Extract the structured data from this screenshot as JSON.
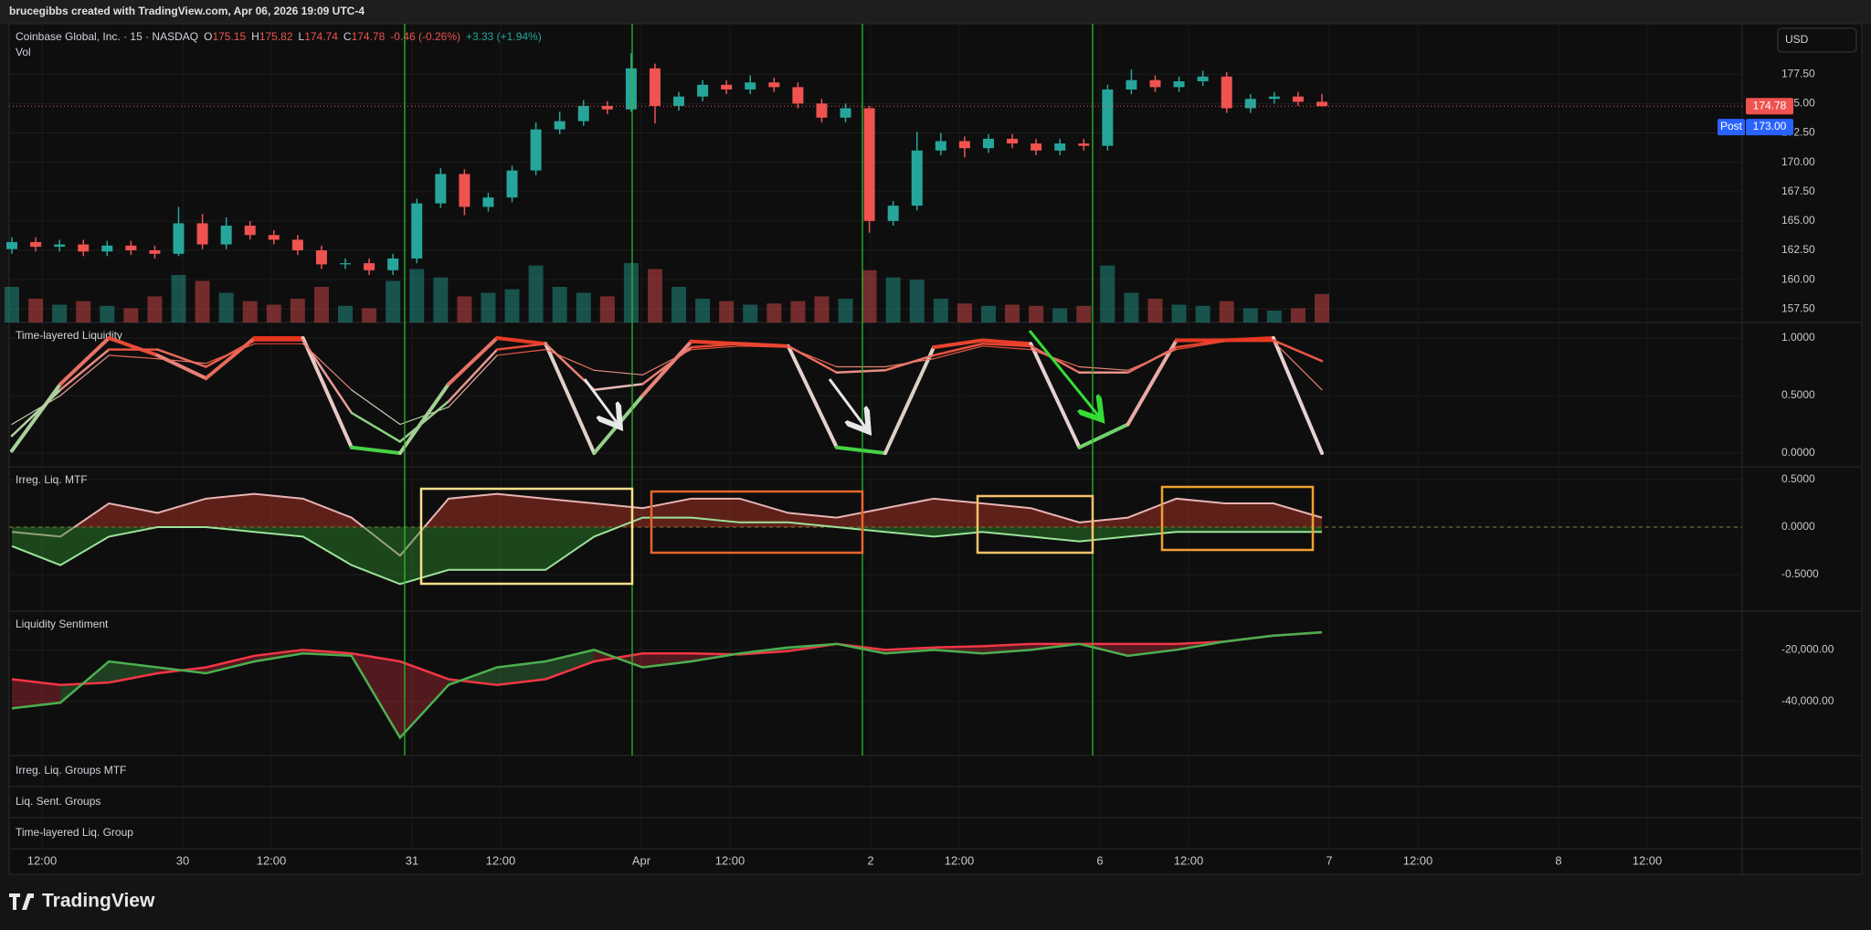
{
  "header": {
    "title": "brucegibbs created with TradingView.com, Apr 06, 2026 19:09 UTC-4"
  },
  "legend": {
    "symbol": "Coinbase Global, Inc. · 15 · NASDAQ",
    "o_label": "O",
    "open": "175.15",
    "h_label": "H",
    "high": "175.82",
    "l_label": "L",
    "low": "174.74",
    "c_label": "C",
    "close": "174.78",
    "change": "-0.46 (-0.26%)",
    "post_change": "+3.33 (+1.94%)",
    "vol": "Vol"
  },
  "currency": "USD",
  "chart_data": [
    {
      "type": "candlestick",
      "open": [
        162.6,
        163.2,
        162.8,
        163.0,
        162.4,
        162.9,
        162.5,
        162.2,
        164.8,
        163.0,
        164.6,
        163.8,
        163.4,
        162.5,
        161.3,
        161.4,
        160.8,
        161.8,
        166.5,
        169.0,
        166.2,
        167.0,
        169.3,
        172.8,
        173.5,
        174.8,
        174.5,
        178.0,
        174.8,
        175.6,
        176.6,
        176.2,
        176.8,
        176.4,
        175.0,
        173.8,
        174.6,
        165.0,
        166.3,
        171.0,
        171.8,
        171.2,
        172.0,
        171.6,
        171.0,
        171.6,
        171.4,
        176.2,
        177.0,
        176.4,
        176.9,
        177.3,
        174.6,
        175.4,
        175.6,
        175.15
      ],
      "high": [
        163.6,
        163.6,
        163.4,
        163.4,
        163.3,
        163.3,
        162.9,
        166.2,
        165.6,
        165.3,
        165.0,
        164.2,
        163.8,
        162.9,
        161.8,
        161.8,
        162.2,
        166.9,
        169.5,
        169.4,
        167.4,
        169.7,
        173.4,
        174.3,
        175.3,
        175.2,
        179.3,
        178.4,
        176.0,
        177.0,
        177.0,
        177.4,
        177.2,
        176.8,
        175.4,
        175.0,
        174.8,
        166.7,
        172.6,
        172.5,
        172.2,
        172.4,
        172.4,
        172.0,
        172.0,
        172.0,
        176.6,
        177.9,
        177.4,
        177.3,
        177.8,
        177.7,
        175.8,
        176.0,
        176.0,
        175.82
      ],
      "low": [
        162.2,
        162.4,
        162.4,
        162.0,
        162.0,
        162.1,
        161.8,
        162.0,
        162.6,
        162.6,
        163.4,
        163.0,
        162.1,
        160.9,
        160.9,
        160.4,
        160.4,
        161.4,
        166.1,
        165.5,
        165.8,
        166.6,
        168.9,
        172.4,
        173.1,
        174.1,
        174.3,
        173.3,
        174.4,
        175.2,
        175.8,
        175.8,
        176.0,
        174.6,
        173.4,
        173.4,
        164.0,
        164.6,
        165.9,
        170.6,
        170.4,
        170.8,
        171.2,
        170.6,
        170.6,
        171.0,
        171.0,
        175.8,
        176.0,
        176.0,
        176.5,
        174.2,
        174.2,
        175.0,
        174.8,
        174.74
      ],
      "close": [
        163.2,
        162.8,
        163.0,
        162.4,
        162.9,
        162.5,
        162.2,
        164.8,
        163.0,
        164.6,
        163.8,
        163.4,
        162.5,
        161.3,
        161.4,
        160.8,
        161.8,
        166.5,
        169.0,
        166.2,
        167.0,
        169.3,
        172.8,
        173.5,
        174.8,
        174.5,
        178.0,
        174.8,
        175.6,
        176.6,
        176.2,
        176.8,
        176.4,
        175.0,
        173.8,
        174.6,
        165.0,
        166.3,
        171.0,
        171.8,
        171.2,
        172.0,
        171.6,
        171.0,
        171.6,
        171.4,
        176.2,
        177.0,
        176.4,
        176.9,
        177.3,
        174.6,
        175.4,
        175.6,
        175.15,
        174.78
      ],
      "volume": [
        30,
        20,
        15,
        18,
        14,
        12,
        22,
        40,
        35,
        25,
        18,
        15,
        20,
        30,
        14,
        12,
        35,
        45,
        38,
        22,
        25,
        28,
        48,
        30,
        25,
        22,
        50,
        45,
        30,
        20,
        18,
        15,
        16,
        18,
        22,
        20,
        44,
        38,
        36,
        20,
        16,
        14,
        15,
        14,
        12,
        14,
        48,
        25,
        20,
        15,
        14,
        18,
        12,
        10,
        12,
        24
      ],
      "vol_ylim": [
        0,
        100
      ],
      "up_color": "#26a69a",
      "down_color": "#ef5350",
      "ylim": [
        156.35,
        181.8
      ],
      "yticks": [
        {
          "value": 157.5,
          "label": "157.50"
        },
        {
          "value": 160,
          "label": "160.00"
        },
        {
          "value": 162.5,
          "label": "162.50"
        },
        {
          "value": 165,
          "label": "165.00"
        },
        {
          "value": 167.5,
          "label": "167.50"
        },
        {
          "value": 170,
          "label": "170.00"
        },
        {
          "value": 172.5,
          "label": "172.50"
        },
        {
          "value": 175,
          "label": "175.00"
        },
        {
          "value": 177.5,
          "label": "177.50"
        }
      ],
      "grid": true,
      "last_price": {
        "value": 174.78,
        "label": "174.78"
      },
      "post_label": "Post",
      "post_price": {
        "value": 173,
        "label": "173.00"
      }
    },
    {
      "type": "line",
      "title": "Time-layered Liquidity",
      "gradient": [
        "#3fd13f",
        "#e8d0d0",
        "#e8331c"
      ],
      "series": [
        {
          "values": [
            0.02,
            0.6,
            1.0,
            0.85,
            0.65,
            1.0,
            1.0,
            0.05,
            0.0,
            0.6,
            1.0,
            0.95,
            0.0,
            0.5,
            0.97,
            0.95,
            0.93,
            0.05,
            0.0,
            0.92,
            0.98,
            0.95,
            0.05,
            0.25,
            0.98,
            0.98,
            1.0,
            0.0
          ]
        },
        {
          "values": [
            0.15,
            0.55,
            0.9,
            0.9,
            0.75,
            0.98,
            0.98,
            0.35,
            0.1,
            0.45,
            0.9,
            0.95,
            0.55,
            0.6,
            0.92,
            0.95,
            0.93,
            0.7,
            0.72,
            0.85,
            0.95,
            0.93,
            0.7,
            0.7,
            0.92,
            0.98,
            0.98,
            0.8
          ]
        },
        {
          "values": [
            0.25,
            0.5,
            0.85,
            0.82,
            0.78,
            0.95,
            0.95,
            0.55,
            0.25,
            0.4,
            0.85,
            0.9,
            0.72,
            0.68,
            0.9,
            0.93,
            0.92,
            0.75,
            0.75,
            0.82,
            0.93,
            0.9,
            0.75,
            0.72,
            0.9,
            0.97,
            0.97,
            0.55
          ]
        }
      ],
      "ylim": [
        -0.119,
        1.135
      ],
      "yticks": [
        {
          "value": 1,
          "label": "1.0000"
        },
        {
          "value": 0.5,
          "label": "0.5000"
        },
        {
          "value": 0,
          "label": "0.0000"
        }
      ],
      "grid": true
    },
    {
      "type": "area",
      "title": "Irreg. Liq. MTF",
      "series": [
        {
          "color": "#e8b4b4",
          "fill": "#c0392b",
          "values": [
            -0.05,
            -0.1,
            0.25,
            0.15,
            0.3,
            0.35,
            0.3,
            0.1,
            -0.3,
            0.3,
            0.35,
            0.3,
            0.25,
            0.2,
            0.3,
            0.3,
            0.15,
            0.1,
            0.2,
            0.3,
            0.25,
            0.2,
            0.05,
            0.1,
            0.3,
            0.25,
            0.25,
            0.1
          ]
        },
        {
          "color": "#9be39b",
          "fill": "#2e8b2e",
          "values": [
            -0.2,
            -0.4,
            -0.1,
            0.0,
            0.0,
            -0.05,
            -0.1,
            -0.4,
            -0.6,
            -0.45,
            -0.45,
            -0.45,
            -0.1,
            0.1,
            0.1,
            0.05,
            0.05,
            0.0,
            -0.05,
            -0.1,
            -0.05,
            -0.1,
            -0.15,
            -0.1,
            -0.05,
            -0.05,
            -0.05,
            -0.05
          ]
        }
      ],
      "ylim": [
        -0.885,
        0.635
      ],
      "yticks": [
        {
          "value": 0.5,
          "label": "0.5000"
        },
        {
          "value": 0,
          "label": "0.0000"
        },
        {
          "value": -0.5,
          "label": "-0.5000"
        }
      ],
      "grid": true
    },
    {
      "type": "band",
      "title": "Liquidity Sentiment",
      "series": [
        {
          "color": "#f23645",
          "values": [
            -31400,
            -33600,
            -32700,
            -29100,
            -26800,
            -22300,
            -20000,
            -21400,
            -24500,
            -31400,
            -33600,
            -31400,
            -24500,
            -21400,
            -21400,
            -21800,
            -20500,
            -17700,
            -20000,
            -19100,
            -18600,
            -17700,
            -17700,
            -17700,
            -17700,
            -16800,
            -14500,
            -13200
          ]
        },
        {
          "color": "#4caf50",
          "values": [
            -42700,
            -40500,
            -24500,
            -26800,
            -29100,
            -24500,
            -21400,
            -22300,
            -54100,
            -33600,
            -26800,
            -24500,
            -20000,
            -26800,
            -24500,
            -21400,
            -19100,
            -17700,
            -21400,
            -20000,
            -21400,
            -20000,
            -17700,
            -22300,
            -20000,
            -16800,
            -14500,
            -13200
          ]
        }
      ],
      "ylim": [
        -61000,
        -5000
      ],
      "yticks": [
        {
          "value": -20000,
          "label": "-20,000.00"
        },
        {
          "value": -40000,
          "label": "-40,000.00"
        }
      ],
      "grid": true
    }
  ],
  "empty_panes": [
    "Irreg. Liq. Groups MTF",
    "Liq. Sent. Groups",
    "Time-layered Liq. Group"
  ],
  "time_axis": [
    "12:00",
    "30",
    "12:00",
    "31",
    "12:00",
    "Apr",
    "12:00",
    "2",
    "12:00",
    "6",
    "12:00",
    "7",
    "12:00",
    "8",
    "12:00"
  ],
  "footer": {
    "brand": "TradingView"
  }
}
